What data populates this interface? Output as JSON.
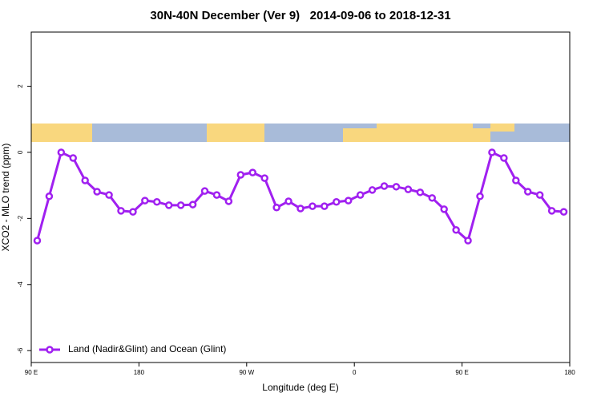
{
  "chart_data": {
    "type": "line",
    "title": "30N-40N December (Ver 9)   2014-09-06 to 2018-12-31",
    "xlabel": "Longitude (deg E)",
    "ylabel": "XCO2 - MLO trend (ppm)",
    "x": [
      95,
      105,
      115,
      125,
      135,
      145,
      155,
      165,
      175,
      185,
      195,
      205,
      215,
      225,
      235,
      245,
      255,
      265,
      275,
      285,
      295,
      305,
      315,
      325,
      335,
      345,
      355,
      365,
      375,
      385,
      395,
      405,
      415,
      425,
      435,
      445,
      455,
      465,
      475,
      485,
      495,
      505,
      515,
      525,
      535
    ],
    "series": [
      {
        "name": "Land (Nadir&Glint) and Ocean (Glint)",
        "color": "#a020f0",
        "values": [
          -2.67,
          -1.33,
          0,
          -0.17,
          -0.85,
          -1.19,
          -1.29,
          -1.77,
          -1.8,
          -1.46,
          -1.5,
          -1.6,
          -1.6,
          -1.58,
          -1.17,
          -1.29,
          -1.48,
          -0.68,
          -0.61,
          -0.78,
          -1.67,
          -1.48,
          -1.7,
          -1.63,
          -1.63,
          -1.5,
          -1.46,
          -1.29,
          -1.14,
          -1.02,
          -1.04,
          -1.12,
          -1.21,
          -1.38,
          -1.72,
          -2.35,
          -2.67,
          -1.33,
          0,
          -0.17,
          -0.85,
          -1.19,
          -1.29,
          -1.77,
          -1.8
        ]
      }
    ],
    "xlim": [
      90,
      540
    ],
    "xticks": [
      {
        "value": 90,
        "label": "90 E"
      },
      180,
      {
        "value": 270,
        "label": "90 W"
      },
      {
        "value": 360,
        "label": "0"
      },
      {
        "value": 450,
        "label": "90 E"
      },
      {
        "value": 540,
        "label": "180"
      }
    ],
    "ylim": [
      -6.36,
      3.64
    ],
    "yticks": [
      -6,
      -4,
      -2,
      0,
      2
    ],
    "legend": "bottom-left"
  }
}
